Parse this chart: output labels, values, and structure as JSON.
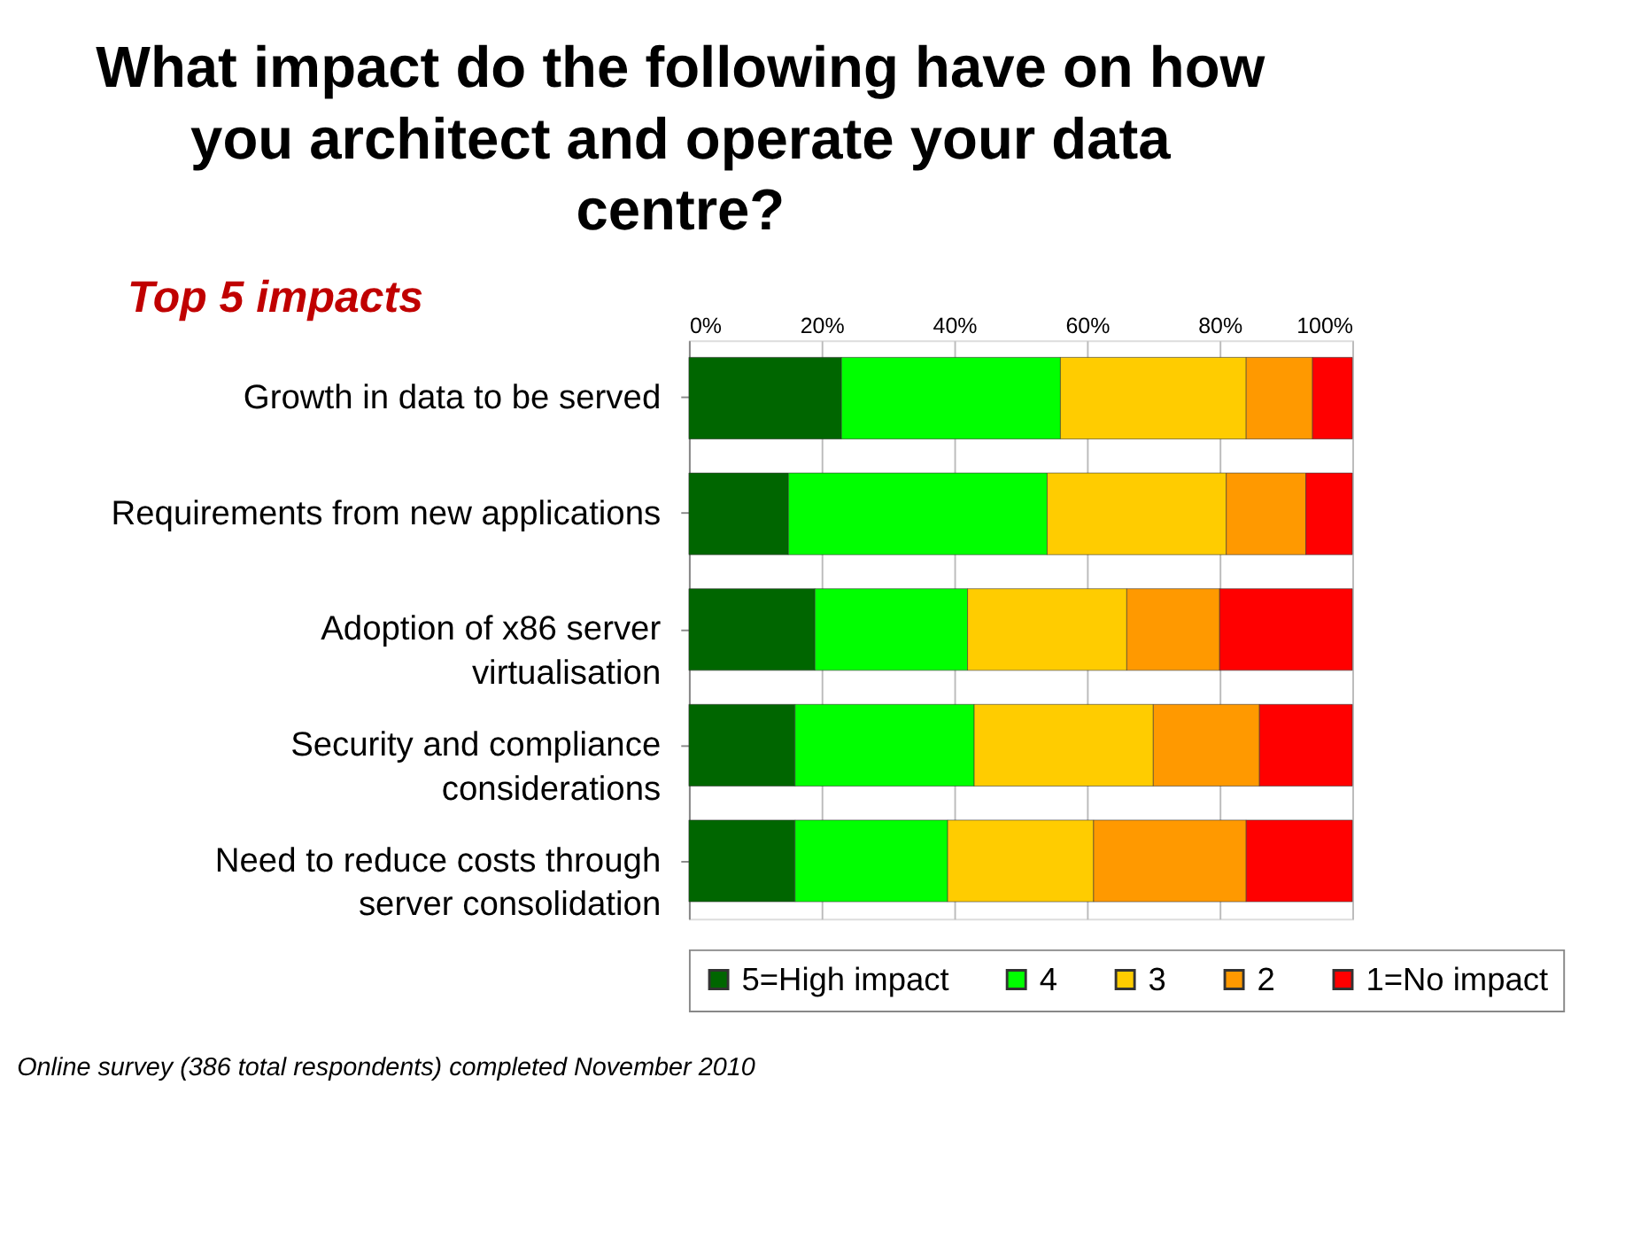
{
  "chart_data": {
    "type": "bar",
    "orientation": "horizontal",
    "stacked": true,
    "title": "What impact do the following have on how you architect and operate your data centre?",
    "subtitle": "Top 5 impacts",
    "categories": [
      "Growth in data to be served",
      "Requirements from new applications",
      "Adoption of x86 server virtualisation",
      "Security and compliance considerations",
      "Need to reduce costs through server consolidation"
    ],
    "series": [
      {
        "name": "5=High impact",
        "color": "#006600",
        "values": [
          23,
          15,
          19,
          16,
          16
        ]
      },
      {
        "name": "4",
        "color": "#00ff00",
        "values": [
          33,
          39,
          23,
          27,
          23
        ]
      },
      {
        "name": "3",
        "color": "#ffcc00",
        "values": [
          28,
          27,
          24,
          27,
          22
        ]
      },
      {
        "name": "2",
        "color": "#ff9900",
        "values": [
          10,
          12,
          14,
          16,
          23
        ]
      },
      {
        "name": "1=No impact",
        "color": "#ff0000",
        "values": [
          6,
          7,
          20,
          14,
          16
        ]
      }
    ],
    "xlim": [
      0,
      100
    ],
    "xticks": [
      {
        "value": 0,
        "label": "0%"
      },
      {
        "value": 20,
        "label": "20%"
      },
      {
        "value": 40,
        "label": "40%"
      },
      {
        "value": 60,
        "label": "60%"
      },
      {
        "value": 80,
        "label": "80%"
      },
      {
        "value": 100,
        "label": "100%"
      }
    ],
    "grid": "x",
    "legend": "bottom",
    "annotations": [
      "Online survey (386 total respondents) completed November 2010"
    ]
  }
}
